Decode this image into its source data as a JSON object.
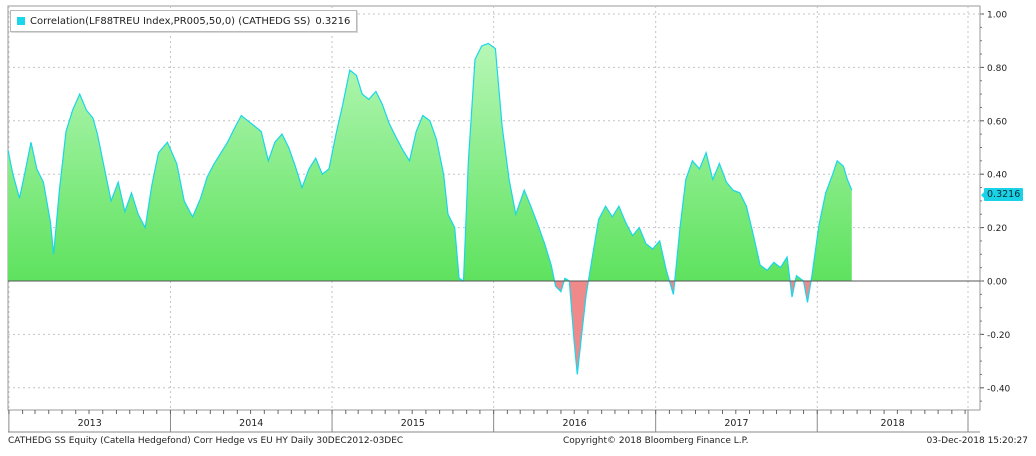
{
  "legend": {
    "label": "Correlation(LF88TREU Index,PR005,50,0) (CATHEDG SS)",
    "last_value": "0.3216",
    "color": "#19d6ea"
  },
  "footer": {
    "left": "CATHEDG SS Equity (Catella Hedgefond) Corr Hedge vs EU HY  Daily 30DEC2012-03DEC",
    "center": "Copyright© 2018 Bloomberg Finance L.P.",
    "right": "03-Dec-2018 15:20:27"
  },
  "colors": {
    "line": "#19d6ea",
    "positive_fill": "#5ee25e",
    "negative_fill": "#f08a8a",
    "grid": "#c4c4c4"
  },
  "chart_data": {
    "type": "area",
    "title": "",
    "xlabel": "",
    "ylabel": "",
    "ylim": [
      -0.45,
      1.0
    ],
    "y_ticks": [
      "1.00",
      "0.80",
      "0.60",
      "0.40",
      "0.20",
      "0.00",
      "-0.20",
      "-0.40"
    ],
    "x_year_labels": [
      "2013",
      "2014",
      "2015",
      "2016",
      "2017",
      "2018"
    ],
    "last_value": 0.3216,
    "grid": true,
    "series": [
      {
        "values": [
          [
            "2012-12-30",
            0.49
          ],
          [
            "2013-01-10",
            0.4
          ],
          [
            "2013-01-25",
            0.31
          ],
          [
            "2013-02-08",
            0.42
          ],
          [
            "2013-02-20",
            0.52
          ],
          [
            "2013-03-05",
            0.42
          ],
          [
            "2013-03-20",
            0.37
          ],
          [
            "2013-04-05",
            0.22
          ],
          [
            "2013-04-12",
            0.1
          ],
          [
            "2013-04-25",
            0.34
          ],
          [
            "2013-05-10",
            0.56
          ],
          [
            "2013-05-25",
            0.64
          ],
          [
            "2013-06-10",
            0.7
          ],
          [
            "2013-06-25",
            0.64
          ],
          [
            "2013-07-10",
            0.61
          ],
          [
            "2013-07-20",
            0.55
          ],
          [
            "2013-08-05",
            0.42
          ],
          [
            "2013-08-20",
            0.3
          ],
          [
            "2013-09-05",
            0.37
          ],
          [
            "2013-09-20",
            0.26
          ],
          [
            "2013-10-05",
            0.33
          ],
          [
            "2013-10-20",
            0.25
          ],
          [
            "2013-11-05",
            0.2
          ],
          [
            "2013-11-20",
            0.36
          ],
          [
            "2013-12-05",
            0.48
          ],
          [
            "2013-12-25",
            0.52
          ],
          [
            "2014-01-15",
            0.44
          ],
          [
            "2014-02-01",
            0.3
          ],
          [
            "2014-02-20",
            0.24
          ],
          [
            "2014-03-10",
            0.31
          ],
          [
            "2014-03-25",
            0.39
          ],
          [
            "2014-04-10",
            0.44
          ],
          [
            "2014-04-25",
            0.48
          ],
          [
            "2014-05-10",
            0.52
          ],
          [
            "2014-05-25",
            0.57
          ],
          [
            "2014-06-10",
            0.62
          ],
          [
            "2014-06-25",
            0.6
          ],
          [
            "2014-07-10",
            0.58
          ],
          [
            "2014-07-25",
            0.56
          ],
          [
            "2014-08-10",
            0.45
          ],
          [
            "2014-08-25",
            0.52
          ],
          [
            "2014-09-10",
            0.55
          ],
          [
            "2014-09-25",
            0.5
          ],
          [
            "2014-10-10",
            0.43
          ],
          [
            "2014-10-25",
            0.35
          ],
          [
            "2014-11-10",
            0.42
          ],
          [
            "2014-11-25",
            0.46
          ],
          [
            "2014-12-10",
            0.4
          ],
          [
            "2014-12-25",
            0.42
          ],
          [
            "2015-01-10",
            0.55
          ],
          [
            "2015-01-25",
            0.66
          ],
          [
            "2015-02-10",
            0.79
          ],
          [
            "2015-02-25",
            0.77
          ],
          [
            "2015-03-10",
            0.7
          ],
          [
            "2015-03-25",
            0.68
          ],
          [
            "2015-04-10",
            0.71
          ],
          [
            "2015-04-25",
            0.66
          ],
          [
            "2015-05-10",
            0.59
          ],
          [
            "2015-05-25",
            0.54
          ],
          [
            "2015-06-10",
            0.49
          ],
          [
            "2015-06-25",
            0.45
          ],
          [
            "2015-07-10",
            0.56
          ],
          [
            "2015-07-25",
            0.62
          ],
          [
            "2015-08-10",
            0.6
          ],
          [
            "2015-08-25",
            0.53
          ],
          [
            "2015-09-10",
            0.4
          ],
          [
            "2015-09-20",
            0.25
          ],
          [
            "2015-10-05",
            0.2
          ],
          [
            "2015-10-15",
            0.01
          ],
          [
            "2015-10-25",
            0.0
          ],
          [
            "2015-11-05",
            0.45
          ],
          [
            "2015-11-20",
            0.83
          ],
          [
            "2015-12-05",
            0.88
          ],
          [
            "2015-12-20",
            0.89
          ],
          [
            "2016-01-05",
            0.87
          ],
          [
            "2016-01-20",
            0.58
          ],
          [
            "2016-02-05",
            0.38
          ],
          [
            "2016-02-20",
            0.25
          ],
          [
            "2016-03-10",
            0.34
          ],
          [
            "2016-03-25",
            0.28
          ],
          [
            "2016-04-10",
            0.21
          ],
          [
            "2016-04-25",
            0.14
          ],
          [
            "2016-05-10",
            0.06
          ],
          [
            "2016-05-20",
            -0.02
          ],
          [
            "2016-06-01",
            -0.04
          ],
          [
            "2016-06-10",
            0.01
          ],
          [
            "2016-06-20",
            0.0
          ],
          [
            "2016-07-01",
            -0.23
          ],
          [
            "2016-07-08",
            -0.35
          ],
          [
            "2016-07-18",
            -0.2
          ],
          [
            "2016-07-28",
            -0.05
          ],
          [
            "2016-08-10",
            0.08
          ],
          [
            "2016-08-25",
            0.23
          ],
          [
            "2016-09-10",
            0.28
          ],
          [
            "2016-09-25",
            0.24
          ],
          [
            "2016-10-10",
            0.28
          ],
          [
            "2016-10-25",
            0.22
          ],
          [
            "2016-11-10",
            0.17
          ],
          [
            "2016-11-25",
            0.2
          ],
          [
            "2016-12-10",
            0.14
          ],
          [
            "2016-12-25",
            0.12
          ],
          [
            "2017-01-10",
            0.15
          ],
          [
            "2017-01-25",
            0.04
          ],
          [
            "2017-02-10",
            -0.05
          ],
          [
            "2017-02-25",
            0.2
          ],
          [
            "2017-03-10",
            0.38
          ],
          [
            "2017-03-25",
            0.45
          ],
          [
            "2017-04-10",
            0.42
          ],
          [
            "2017-04-25",
            0.48
          ],
          [
            "2017-05-10",
            0.38
          ],
          [
            "2017-05-25",
            0.44
          ],
          [
            "2017-06-10",
            0.37
          ],
          [
            "2017-06-25",
            0.34
          ],
          [
            "2017-07-10",
            0.33
          ],
          [
            "2017-07-25",
            0.28
          ],
          [
            "2017-08-10",
            0.17
          ],
          [
            "2017-08-25",
            0.06
          ],
          [
            "2017-09-10",
            0.04
          ],
          [
            "2017-09-25",
            0.07
          ],
          [
            "2017-10-10",
            0.05
          ],
          [
            "2017-10-25",
            0.09
          ],
          [
            "2017-11-05",
            -0.06
          ],
          [
            "2017-11-15",
            0.02
          ],
          [
            "2017-12-01",
            0.0
          ],
          [
            "2017-12-10",
            -0.08
          ],
          [
            "2017-12-20",
            0.02
          ],
          [
            "2018-01-05",
            0.21
          ],
          [
            "2018-01-20",
            0.33
          ],
          [
            "2018-02-05",
            0.4
          ],
          [
            "2018-02-15",
            0.45
          ],
          [
            "2018-03-01",
            0.43
          ],
          [
            "2018-03-10",
            0.38
          ],
          [
            "2018-03-20",
            0.34
          ]
        ]
      }
    ]
  }
}
